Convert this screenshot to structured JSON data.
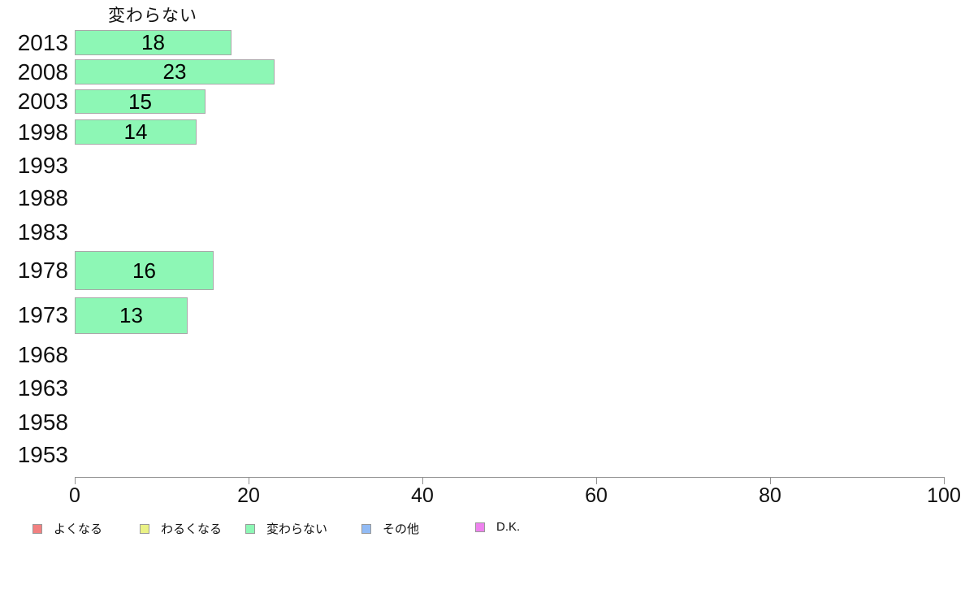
{
  "title": "変わらない",
  "chart_data": {
    "type": "bar",
    "orientation": "horizontal",
    "title": "変わらない",
    "categories": [
      "2013",
      "2008",
      "2003",
      "1998",
      "1993",
      "1988",
      "1983",
      "1978",
      "1973",
      "1968",
      "1963",
      "1958",
      "1953"
    ],
    "values": [
      18,
      23,
      15,
      14,
      null,
      null,
      null,
      16,
      13,
      null,
      null,
      null,
      null
    ],
    "xlabel": "",
    "ylabel": "",
    "xlim": [
      0,
      100
    ],
    "x_ticks": [
      "0",
      "20",
      "40",
      "60",
      "80",
      "100"
    ],
    "grid": false,
    "legend_position": "bottom-left",
    "bar_color": "#8DF7B5",
    "bar_border_color": "#A8A8A8",
    "axis_color": "#909090",
    "legend": [
      {
        "label": "よくなる",
        "color": "#F28080"
      },
      {
        "label": "わるくなる",
        "color": "#EAF285"
      },
      {
        "label": "変わらない",
        "color": "#8DF7B5"
      },
      {
        "label": "その他",
        "color": "#92BBF5"
      },
      {
        "label": "D.K.",
        "color": "#EE82EE"
      }
    ]
  }
}
